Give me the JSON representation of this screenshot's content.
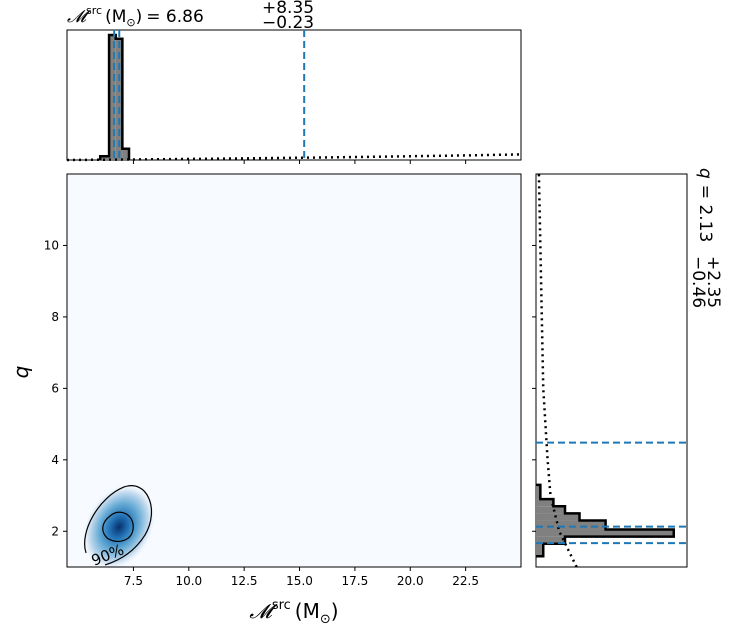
{
  "chart_data": {
    "type": "corner",
    "title_x": {
      "symbol": "𝓜",
      "sup": "src",
      "unit": "(M",
      "sun": "⊙",
      "close": ")",
      "eq": "= 6.86",
      "err_plus": "+8.35",
      "err_minus": "−0.23"
    },
    "title_y": {
      "symbol": "q",
      "eq": "= 2.13",
      "err_plus": "+2.35",
      "err_minus": "−0.46"
    },
    "xlabel": {
      "symbol": "𝓜",
      "sup": "src",
      "unit": "(M",
      "sun": "⊙",
      "close": ")"
    },
    "ylabel": "q",
    "xlim": [
      4.5,
      25.0
    ],
    "ylim": [
      1.0,
      12.0
    ],
    "x_ticks": [
      7.5,
      10.0,
      12.5,
      15.0,
      17.5,
      20.0,
      22.5
    ],
    "x_tick_labels": [
      "7.5",
      "10.0",
      "12.5",
      "15.0",
      "17.5",
      "20.0",
      "22.5"
    ],
    "y_ticks": [
      2,
      4,
      6,
      8,
      10
    ],
    "y_tick_labels": [
      "2",
      "4",
      "6",
      "8",
      "10"
    ],
    "x_quantiles": [
      6.63,
      6.86,
      15.21
    ],
    "y_quantiles": [
      1.67,
      2.13,
      4.48
    ],
    "x_hist": {
      "edges": [
        6.0,
        6.4,
        6.7,
        7.0,
        7.3
      ],
      "counts": [
        0.03,
        1.0,
        0.97,
        0.09
      ]
    },
    "y_hist": {
      "edges": [
        1.3,
        1.65,
        1.85,
        2.05,
        2.3,
        2.5,
        2.7,
        2.9,
        3.3
      ],
      "counts": [
        0.05,
        0.2,
        0.95,
        0.48,
        0.3,
        0.2,
        0.12,
        0.03
      ]
    },
    "x_prior": {
      "x": [
        4.5,
        8,
        12,
        16,
        20,
        23,
        25
      ],
      "y": [
        0.0,
        0.005,
        0.012,
        0.02,
        0.03,
        0.038,
        0.045
      ]
    },
    "y_prior": {
      "y": [
        1.0,
        1.5,
        2.0,
        3.0,
        4.0,
        6.0,
        8.0,
        10.0,
        12.0
      ],
      "x": [
        0.28,
        0.22,
        0.16,
        0.1,
        0.08,
        0.05,
        0.04,
        0.03,
        0.02
      ]
    },
    "density_center": [
      6.85,
      2.12
    ],
    "contour_label": "90%",
    "colors": {
      "quantile": "#1f77b4",
      "hist_fill": "#808080",
      "density": "#08519c",
      "density_bg": "#f7fbff"
    }
  }
}
